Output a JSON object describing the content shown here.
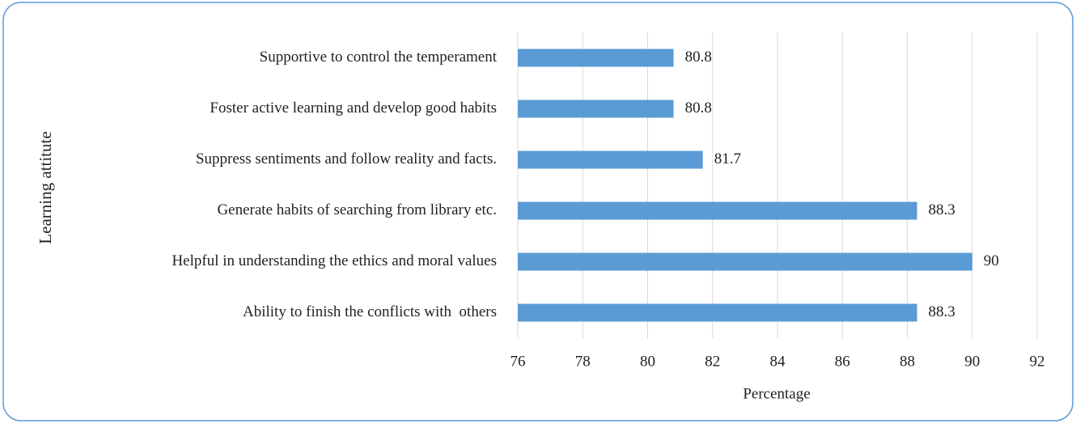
{
  "chart_data": {
    "type": "bar",
    "orientation": "horizontal",
    "categories": [
      "Supportive to control the temperament",
      "Foster active learning and develop good habits",
      "Suppress sentiments and follow reality and facts.",
      "Generate habits of searching from library etc.",
      "Helpful in understanding the ethics and moral values",
      "Ability to finish the conflicts with  others"
    ],
    "values": [
      80.8,
      80.8,
      81.7,
      88.3,
      90,
      88.3
    ],
    "color": "#5b9bd5",
    "xlabel": "Percentage",
    "ylabel": "Learning attitute",
    "xlim": [
      76,
      92
    ],
    "xticks": [
      76,
      78,
      80,
      82,
      84,
      86,
      88,
      90,
      92
    ],
    "grid": true
  }
}
